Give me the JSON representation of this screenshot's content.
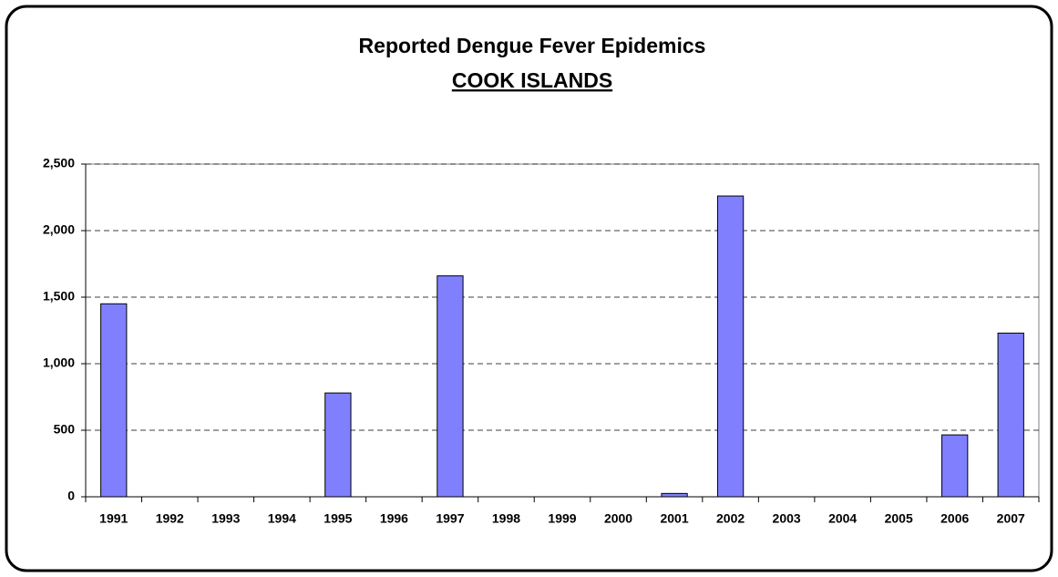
{
  "chart_data": {
    "type": "bar",
    "title": "Reported Dengue Fever Epidemics",
    "subtitle": "COOK ISLANDS",
    "categories": [
      "1991",
      "1992",
      "1993",
      "1994",
      "1995",
      "1996",
      "1997",
      "1998",
      "1999",
      "2000",
      "2001",
      "2002",
      "2003",
      "2004",
      "2005",
      "2006",
      "2007"
    ],
    "values": [
      1450,
      0,
      0,
      0,
      780,
      0,
      1660,
      0,
      0,
      0,
      25,
      2260,
      0,
      0,
      0,
      465,
      1230
    ],
    "color": "#8080ff",
    "ylim": [
      0,
      2500
    ],
    "yticks": [
      0,
      500,
      {
        "value": 1000,
        "label": "1,000"
      },
      {
        "value": 1500,
        "label": "1,500"
      },
      {
        "value": 2000,
        "label": "2,000"
      },
      {
        "value": 2500,
        "label": "2,500"
      }
    ],
    "grid": true
  }
}
